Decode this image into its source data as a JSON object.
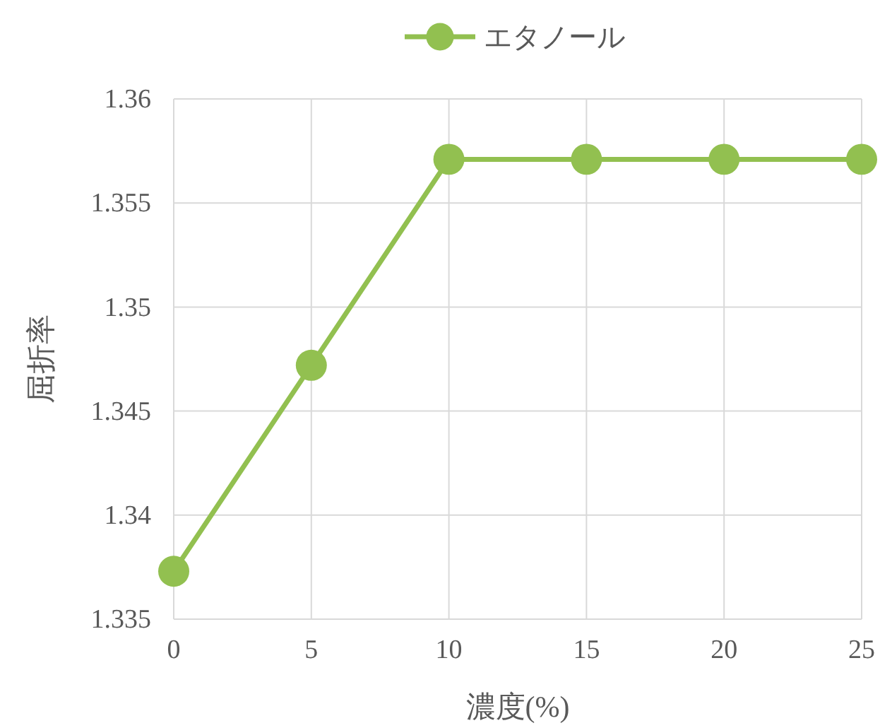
{
  "chart_data": {
    "type": "line",
    "xlabel": "濃度(%)",
    "ylabel": "屈折率",
    "x": [
      0,
      5,
      10,
      15,
      20,
      25
    ],
    "series": [
      {
        "name": "エタノール",
        "color": "#92c050",
        "values": [
          1.3373,
          1.3472,
          1.3571,
          1.3571,
          1.3571,
          1.3571
        ]
      }
    ],
    "xlim": [
      0,
      25
    ],
    "xticks": [
      0,
      5,
      10,
      15,
      20,
      25
    ],
    "ylim": [
      1.335,
      1.36
    ],
    "yticks": [
      1.335,
      1.34,
      1.345,
      1.35,
      1.355,
      1.36
    ],
    "grid": true,
    "legend": "top",
    "marker": "circle",
    "line_style": "solid"
  }
}
